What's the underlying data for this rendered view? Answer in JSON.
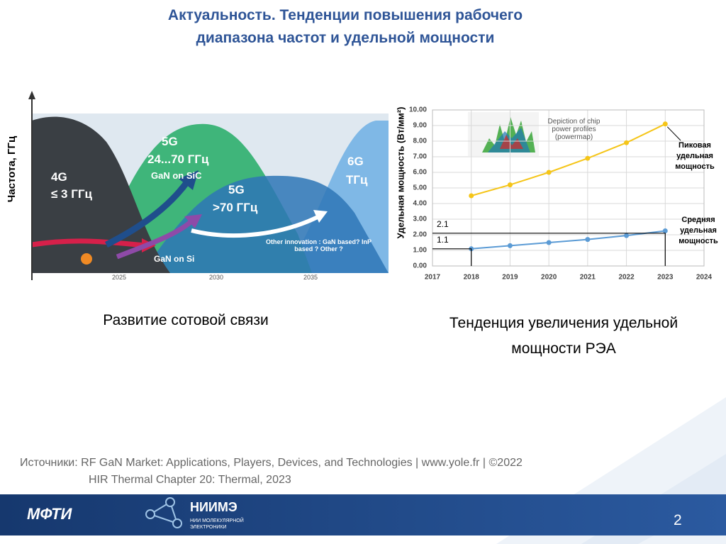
{
  "header": {
    "title": "Актуальность. Тенденции повышения рабочего диапазона частот и удельной мощности"
  },
  "left_figure": {
    "y_label": "Частота, ГГц",
    "x_ticks": [
      "2025",
      "2030",
      "2035"
    ],
    "labels": {
      "g4": "4G",
      "g4_range": "≤ 3 ГГц",
      "g5a": "5G",
      "g5a_range": "24...70 ГГц",
      "g5a_tech": "GaN on SiC",
      "g5b": "5G",
      "g5b_range": ">70 ГГц",
      "g6": "6G",
      "g6_range": "ТГц",
      "gan_si": "GaN on Si",
      "other": "Other innovation : GaN based? InP based ? Other ?"
    },
    "caption": "Развитие сотовой связи"
  },
  "chart_data": {
    "type": "line",
    "y_label": "Удельная мощность (Вт/мм²)",
    "inset_label": "Depiction of chip power profiles (powermap)",
    "x": [
      2018,
      2019,
      2020,
      2021,
      2022,
      2023
    ],
    "xlim": [
      2017,
      2024
    ],
    "xticks": [
      2017,
      2018,
      2019,
      2020,
      2021,
      2022,
      2023,
      2024
    ],
    "ylim": [
      0,
      10
    ],
    "yticks": [
      {
        "value": 0,
        "label": "0.00"
      },
      {
        "value": 1,
        "label": "1.00"
      },
      {
        "value": 2,
        "label": "2.00"
      },
      {
        "value": 3,
        "label": "3.00"
      },
      {
        "value": 4,
        "label": "4.00"
      },
      {
        "value": 5,
        "label": "5.00"
      },
      {
        "value": 6,
        "label": "6.00"
      },
      {
        "value": 7,
        "label": "7.00"
      },
      {
        "value": 8,
        "label": "8.00"
      },
      {
        "value": 9,
        "label": "9.00"
      },
      {
        "value": 10,
        "label": "10.00"
      }
    ],
    "grid": true,
    "series": [
      {
        "name": "Пиковая удельная мощность",
        "color": "#f5c518",
        "values": [
          4.5,
          5.2,
          6.0,
          6.9,
          7.9,
          9.1
        ]
      },
      {
        "name": "Средняя удельная мощность",
        "color": "#5b9bd5",
        "values": [
          1.1,
          1.3,
          1.5,
          1.7,
          1.95,
          2.25
        ]
      }
    ],
    "reference_lines": [
      2.1,
      1.1
    ],
    "caption": "Тенденция увеличения удельной мощности РЭА"
  },
  "sources": [
    "Источники: RF GaN Market: Applications, Players, Devices, and Technologies | www.yole.fr | ©2022",
    "HIR Thermal Chapter 20: Thermal, 2023"
  ],
  "footer": {
    "logo1": "МФТИ",
    "logo2": "НИИМЭ",
    "logo2_sub": "НИИ МОЛЕКУЛЯРНОЙ ЭЛЕКТРОНИКИ",
    "page": "2"
  }
}
